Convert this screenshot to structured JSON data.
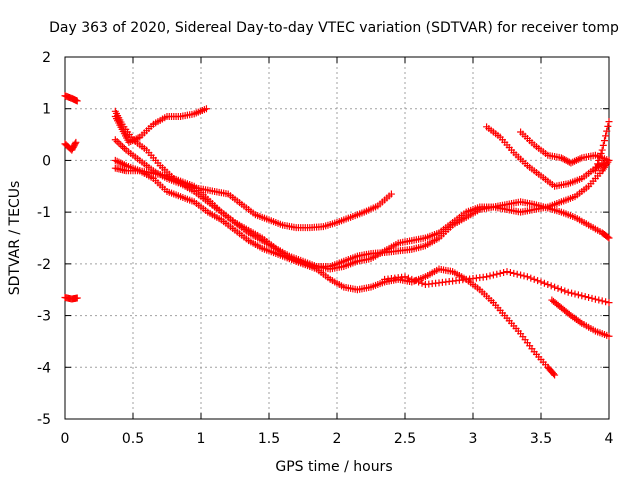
{
  "chart_data": {
    "type": "scatter",
    "title": "Day 363 of 2020, Sidereal Day-to-day VTEC variation (SDTVAR) for receiver tomp",
    "xlabel": "GPS time / hours",
    "ylabel": "SDTVAR / TECUs",
    "xlim": [
      0,
      4
    ],
    "ylim": [
      -5,
      2
    ],
    "xticks": [
      0,
      0.5,
      1,
      1.5,
      2,
      2.5,
      3,
      3.5,
      4
    ],
    "yticks": [
      -5,
      -4,
      -3,
      -2,
      -1,
      0,
      1,
      2
    ],
    "xtick_labels": [
      "0",
      "0.5",
      "1",
      "1.5",
      "2",
      "2.5",
      "3",
      "3.5",
      "4"
    ],
    "ytick_labels": [
      "-5",
      "-4",
      "-3",
      "-2",
      "-1",
      "0",
      "1",
      "2"
    ],
    "grid": true,
    "marker": "+",
    "marker_color": "#ff0000",
    "series": [
      {
        "name": "s1",
        "points": [
          [
            0,
            1.25
          ],
          [
            0.05,
            1.2
          ],
          [
            0.09,
            1.15
          ]
        ]
      },
      {
        "name": "s2",
        "points": [
          [
            0,
            0.32
          ],
          [
            0.05,
            0.2
          ],
          [
            0.08,
            0.35
          ]
        ]
      },
      {
        "name": "s3",
        "points": [
          [
            0,
            -2.65
          ],
          [
            0.05,
            -2.68
          ],
          [
            0.09,
            -2.66
          ]
        ]
      },
      {
        "name": "s4",
        "points": [
          [
            0.37,
            0.85
          ],
          [
            0.42,
            0.6
          ],
          [
            0.47,
            0.35
          ],
          [
            0.55,
            0.45
          ],
          [
            0.65,
            0.7
          ],
          [
            0.75,
            0.85
          ],
          [
            0.85,
            0.85
          ],
          [
            0.95,
            0.9
          ],
          [
            1.04,
            1.0
          ]
        ]
      },
      {
        "name": "s5",
        "points": [
          [
            0.37,
            0.95
          ],
          [
            0.42,
            0.7
          ],
          [
            0.5,
            0.4
          ],
          [
            0.6,
            0.2
          ],
          [
            0.7,
            -0.1
          ],
          [
            0.8,
            -0.35
          ],
          [
            0.9,
            -0.5
          ],
          [
            1.0,
            -0.55
          ],
          [
            1.1,
            -0.6
          ],
          [
            1.2,
            -0.65
          ],
          [
            1.3,
            -0.85
          ],
          [
            1.4,
            -1.05
          ],
          [
            1.5,
            -1.15
          ],
          [
            1.6,
            -1.25
          ],
          [
            1.7,
            -1.3
          ],
          [
            1.8,
            -1.3
          ],
          [
            1.9,
            -1.28
          ],
          [
            2.0,
            -1.2
          ],
          [
            2.1,
            -1.1
          ],
          [
            2.2,
            -1.0
          ],
          [
            2.3,
            -0.88
          ],
          [
            2.4,
            -0.65
          ]
        ]
      },
      {
        "name": "s6",
        "points": [
          [
            0.37,
            -0.15
          ],
          [
            0.45,
            -0.2
          ],
          [
            0.55,
            -0.2
          ],
          [
            0.65,
            -0.25
          ],
          [
            0.75,
            -0.3
          ],
          [
            0.85,
            -0.4
          ],
          [
            0.95,
            -0.5
          ],
          [
            1.05,
            -0.75
          ],
          [
            1.15,
            -1.0
          ],
          [
            1.25,
            -1.2
          ],
          [
            1.35,
            -1.35
          ],
          [
            1.45,
            -1.5
          ],
          [
            1.55,
            -1.7
          ],
          [
            1.65,
            -1.9
          ],
          [
            1.75,
            -2.0
          ],
          [
            1.85,
            -2.05
          ],
          [
            1.95,
            -2.05
          ],
          [
            2.05,
            -1.95
          ],
          [
            2.15,
            -1.85
          ],
          [
            2.25,
            -1.8
          ],
          [
            2.35,
            -1.78
          ],
          [
            2.45,
            -1.75
          ],
          [
            2.55,
            -1.72
          ],
          [
            2.65,
            -1.65
          ],
          [
            2.75,
            -1.5
          ],
          [
            2.85,
            -1.25
          ],
          [
            2.95,
            -1.1
          ],
          [
            3.05,
            -0.95
          ],
          [
            3.15,
            -0.9
          ],
          [
            3.25,
            -0.85
          ],
          [
            3.35,
            -0.8
          ],
          [
            3.45,
            -0.85
          ],
          [
            3.55,
            -0.92
          ],
          [
            3.65,
            -1.0
          ],
          [
            3.75,
            -1.1
          ],
          [
            3.85,
            -1.25
          ],
          [
            3.95,
            -1.4
          ],
          [
            4.0,
            -1.5
          ]
        ]
      },
      {
        "name": "s7",
        "points": [
          [
            0.37,
            0.4
          ],
          [
            0.45,
            0.2
          ],
          [
            0.55,
            0.0
          ],
          [
            0.65,
            -0.2
          ],
          [
            0.75,
            -0.35
          ],
          [
            0.85,
            -0.45
          ],
          [
            0.95,
            -0.6
          ],
          [
            1.05,
            -0.8
          ],
          [
            1.15,
            -1.0
          ],
          [
            1.25,
            -1.2
          ],
          [
            1.35,
            -1.4
          ],
          [
            1.45,
            -1.55
          ],
          [
            1.55,
            -1.7
          ],
          [
            1.65,
            -1.85
          ],
          [
            1.75,
            -1.95
          ],
          [
            1.85,
            -2.05
          ],
          [
            1.95,
            -2.1
          ],
          [
            2.05,
            -2.05
          ],
          [
            2.15,
            -1.95
          ],
          [
            2.25,
            -1.9
          ],
          [
            2.35,
            -1.75
          ],
          [
            2.45,
            -1.6
          ],
          [
            2.55,
            -1.55
          ],
          [
            2.65,
            -1.5
          ],
          [
            2.75,
            -1.4
          ],
          [
            2.85,
            -1.2
          ],
          [
            2.95,
            -1.0
          ],
          [
            3.05,
            -0.9
          ],
          [
            3.15,
            -0.9
          ],
          [
            3.25,
            -0.95
          ],
          [
            3.35,
            -1.0
          ],
          [
            3.45,
            -0.95
          ],
          [
            3.55,
            -0.9
          ],
          [
            3.65,
            -0.8
          ],
          [
            3.75,
            -0.7
          ],
          [
            3.85,
            -0.5
          ],
          [
            3.95,
            -0.2
          ],
          [
            4.0,
            0.0
          ]
        ]
      },
      {
        "name": "s8",
        "points": [
          [
            0.37,
            0.0
          ],
          [
            0.45,
            -0.1
          ],
          [
            0.55,
            -0.2
          ],
          [
            0.65,
            -0.35
          ],
          [
            0.75,
            -0.6
          ],
          [
            0.85,
            -0.7
          ],
          [
            0.95,
            -0.8
          ],
          [
            1.05,
            -1.0
          ],
          [
            1.15,
            -1.15
          ],
          [
            1.25,
            -1.35
          ],
          [
            1.35,
            -1.55
          ],
          [
            1.45,
            -1.7
          ],
          [
            1.55,
            -1.8
          ],
          [
            1.65,
            -1.9
          ],
          [
            1.75,
            -2.0
          ],
          [
            1.85,
            -2.1
          ],
          [
            1.95,
            -2.3
          ],
          [
            2.05,
            -2.45
          ],
          [
            2.15,
            -2.5
          ],
          [
            2.25,
            -2.45
          ],
          [
            2.35,
            -2.35
          ],
          [
            2.45,
            -2.3
          ],
          [
            2.55,
            -2.35
          ],
          [
            2.65,
            -2.25
          ],
          [
            2.75,
            -2.1
          ],
          [
            2.85,
            -2.15
          ],
          [
            2.95,
            -2.3
          ],
          [
            3.05,
            -2.5
          ],
          [
            3.15,
            -2.75
          ],
          [
            3.25,
            -3.05
          ],
          [
            3.35,
            -3.35
          ],
          [
            3.45,
            -3.7
          ],
          [
            3.55,
            -4.0
          ],
          [
            3.6,
            -4.15
          ]
        ]
      },
      {
        "name": "s9",
        "points": [
          [
            2.35,
            -2.3
          ],
          [
            2.5,
            -2.25
          ],
          [
            2.65,
            -2.4
          ],
          [
            2.8,
            -2.35
          ],
          [
            2.95,
            -2.3
          ],
          [
            3.1,
            -2.25
          ],
          [
            3.25,
            -2.15
          ],
          [
            3.4,
            -2.25
          ],
          [
            3.55,
            -2.4
          ],
          [
            3.7,
            -2.55
          ],
          [
            3.85,
            -2.65
          ],
          [
            4.0,
            -2.75
          ]
        ]
      },
      {
        "name": "s10",
        "points": [
          [
            3.1,
            0.65
          ],
          [
            3.2,
            0.45
          ],
          [
            3.3,
            0.15
          ],
          [
            3.4,
            -0.1
          ],
          [
            3.5,
            -0.3
          ],
          [
            3.6,
            -0.5
          ],
          [
            3.7,
            -0.45
          ],
          [
            3.8,
            -0.35
          ],
          [
            3.9,
            -0.15
          ],
          [
            3.97,
            -0.05
          ]
        ]
      },
      {
        "name": "s11",
        "points": [
          [
            3.35,
            0.55
          ],
          [
            3.45,
            0.3
          ],
          [
            3.55,
            0.1
          ],
          [
            3.65,
            0.05
          ],
          [
            3.72,
            -0.05
          ],
          [
            3.8,
            0.05
          ],
          [
            3.9,
            0.1
          ],
          [
            4.0,
            0.0
          ]
        ]
      },
      {
        "name": "s12",
        "points": [
          [
            3.9,
            -0.2
          ],
          [
            3.95,
            0.2
          ],
          [
            4.0,
            0.75
          ]
        ]
      },
      {
        "name": "s13",
        "points": [
          [
            3.58,
            -2.7
          ],
          [
            3.65,
            -2.85
          ],
          [
            3.72,
            -3.0
          ],
          [
            3.8,
            -3.15
          ],
          [
            3.9,
            -3.3
          ],
          [
            4.0,
            -3.4
          ]
        ]
      }
    ]
  }
}
